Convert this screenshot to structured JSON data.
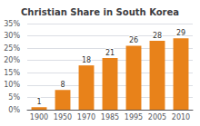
{
  "chart_data": {
    "type": "bar",
    "title": "Christian Share in South Korea",
    "categories": [
      "1900",
      "1950",
      "1970",
      "1985",
      "1995",
      "2005",
      "2010"
    ],
    "values": [
      1,
      8,
      18,
      21,
      26,
      28,
      29
    ],
    "color": "#E8821A",
    "ylim": [
      0,
      35
    ],
    "yticks": [
      {
        "value": 0,
        "label": "0%"
      },
      {
        "value": 5,
        "label": "5%"
      },
      {
        "value": 10,
        "label": "10%"
      },
      {
        "value": 15,
        "label": "15%"
      },
      {
        "value": 20,
        "label": "20%"
      },
      {
        "value": 25,
        "label": "25%"
      },
      {
        "value": 30,
        "label": "30%"
      },
      {
        "value": 35,
        "label": "35%"
      }
    ],
    "grid": true,
    "data_labels": true
  }
}
